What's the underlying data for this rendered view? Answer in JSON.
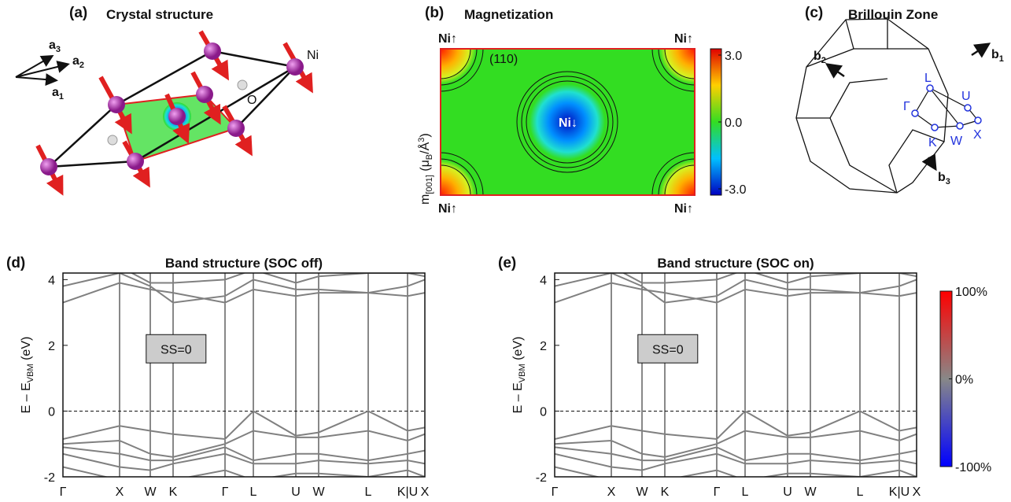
{
  "panel_a": {
    "label": "(a)",
    "title": "Crystal structure",
    "vectors": [
      {
        "name": "a",
        "sub": "3"
      },
      {
        "name": "a",
        "sub": "2"
      },
      {
        "name": "a",
        "sub": "1"
      }
    ],
    "atoms": [
      "Ni",
      "O"
    ]
  },
  "panel_b": {
    "label": "(b)",
    "title": "Magnetization",
    "y_label": [
      "m",
      "[001]",
      " (μ",
      "B",
      "/Å",
      "3",
      ")"
    ],
    "plane": "(110)",
    "corners": [
      "Ni↑",
      "Ni↑",
      "Ni↑",
      "Ni↑"
    ],
    "center": "Ni↓",
    "colorbar": {
      "lim": [
        -3,
        3
      ],
      "ticks": [
        {
          "value": 3,
          "label": "3.0"
        },
        {
          "value": 0,
          "label": "0.0"
        },
        {
          "value": -3,
          "label": "-3.0"
        }
      ]
    }
  },
  "panel_c": {
    "label": "(c)",
    "title": "Brillouin Zone",
    "vectors": [
      {
        "name": "b",
        "sub": "1"
      },
      {
        "name": "b",
        "sub": "2"
      },
      {
        "name": "b",
        "sub": "3"
      }
    ],
    "points": [
      "L",
      "U",
      "Γ",
      "K",
      "W",
      "X"
    ]
  },
  "band_panels": [
    {
      "label": "(d)",
      "title": "Band structure (SOC off)",
      "y_label": [
        "E – E",
        "VBM",
        " (eV)"
      ],
      "note": "SS=0",
      "ylim": [
        -2,
        4.2
      ],
      "yticks": [
        -2,
        0,
        2,
        4
      ],
      "xlim": [
        0,
        460
      ],
      "kticks": [
        {
          "value": 0,
          "label": "Γ"
        },
        {
          "value": 72,
          "label": "X"
        },
        {
          "value": 111,
          "label": "W"
        },
        {
          "value": 140,
          "label": "K"
        },
        {
          "value": 206,
          "label": "Γ"
        },
        {
          "value": 242,
          "label": "L"
        },
        {
          "value": 296,
          "label": "U"
        },
        {
          "value": 325,
          "label": "W"
        },
        {
          "value": 388,
          "label": "L"
        },
        {
          "value": 438,
          "label": "K|U"
        },
        {
          "value": 460,
          "label": "X"
        }
      ],
      "k": [
        0,
        72,
        111,
        140,
        206,
        242,
        296,
        325,
        388,
        438,
        460
      ],
      "bands": [
        [
          -0.85,
          -0.45,
          -0.6,
          -0.7,
          -0.85,
          0,
          -0.75,
          -0.65,
          0,
          -0.6,
          -0.5
        ],
        [
          -1.0,
          -0.9,
          -1.3,
          -1.4,
          -1.0,
          -0.6,
          -0.8,
          -0.8,
          -0.6,
          -0.9,
          -0.7
        ],
        [
          -1.1,
          -1.3,
          -1.5,
          -1.5,
          -1.1,
          -1.5,
          -1.3,
          -1.3,
          -1.5,
          -1.3,
          -1.2
        ],
        [
          -1.3,
          -1.7,
          -1.8,
          -1.6,
          -1.3,
          -1.6,
          -1.6,
          -1.5,
          -1.6,
          -1.5,
          -1.6
        ],
        [
          -1.7,
          -2.1,
          -2.0,
          -2.1,
          -1.8,
          -2.1,
          -1.9,
          -1.9,
          -2.0,
          -1.8,
          -2.0
        ],
        [
          3.3,
          3.9,
          3.7,
          3.6,
          3.3,
          3.7,
          3.5,
          3.6,
          3.6,
          3.8,
          4.0
        ],
        [
          3.8,
          4.2,
          3.8,
          3.3,
          3.5,
          4.0,
          3.7,
          3.7,
          3.6,
          3.5,
          3.6
        ],
        [
          4.3,
          4.4,
          3.9,
          3.9,
          4.0,
          4.3,
          3.9,
          4.1,
          4.2,
          4.2,
          4.1
        ]
      ]
    },
    {
      "label": "(e)",
      "title": "Band structure (SOC on)",
      "y_label": [
        "E – E",
        "VBM",
        " (eV)"
      ],
      "note": "SS=0",
      "ylim": [
        -2,
        4.2
      ],
      "yticks": [
        -2,
        0,
        2,
        4
      ],
      "xlim": [
        0,
        460
      ],
      "kticks": [
        {
          "value": 0,
          "label": "Γ"
        },
        {
          "value": 72,
          "label": "X"
        },
        {
          "value": 111,
          "label": "W"
        },
        {
          "value": 140,
          "label": "K"
        },
        {
          "value": 206,
          "label": "Γ"
        },
        {
          "value": 242,
          "label": "L"
        },
        {
          "value": 296,
          "label": "U"
        },
        {
          "value": 325,
          "label": "W"
        },
        {
          "value": 388,
          "label": "L"
        },
        {
          "value": 438,
          "label": "K|U"
        },
        {
          "value": 460,
          "label": "X"
        }
      ],
      "k": [
        0,
        72,
        111,
        140,
        206,
        242,
        296,
        325,
        388,
        438,
        460
      ],
      "bands": [
        [
          -0.85,
          -0.45,
          -0.6,
          -0.7,
          -0.85,
          0,
          -0.75,
          -0.65,
          0,
          -0.6,
          -0.5
        ],
        [
          -1.0,
          -0.9,
          -1.3,
          -1.4,
          -1.0,
          -0.6,
          -0.8,
          -0.8,
          -0.6,
          -0.9,
          -0.7
        ],
        [
          -1.1,
          -1.3,
          -1.5,
          -1.5,
          -1.1,
          -1.5,
          -1.3,
          -1.3,
          -1.5,
          -1.3,
          -1.2
        ],
        [
          -1.3,
          -1.7,
          -1.8,
          -1.6,
          -1.3,
          -1.6,
          -1.6,
          -1.5,
          -1.6,
          -1.5,
          -1.6
        ],
        [
          -1.7,
          -2.1,
          -2.0,
          -2.1,
          -1.8,
          -2.1,
          -1.9,
          -1.9,
          -2.0,
          -1.8,
          -2.0
        ],
        [
          3.3,
          3.9,
          3.7,
          3.6,
          3.3,
          3.7,
          3.5,
          3.6,
          3.6,
          3.8,
          4.0
        ],
        [
          3.8,
          4.2,
          3.8,
          3.3,
          3.5,
          4.0,
          3.7,
          3.7,
          3.6,
          3.5,
          3.6
        ],
        [
          4.3,
          4.4,
          3.9,
          3.9,
          4.0,
          4.3,
          3.9,
          4.1,
          4.2,
          4.2,
          4.1
        ]
      ]
    }
  ],
  "band_colorbar": {
    "lim": [
      -100,
      100
    ],
    "ticks": [
      {
        "value": 100,
        "label": "100%"
      },
      {
        "value": 0,
        "label": "0%"
      },
      {
        "value": -100,
        "label": "-100%"
      }
    ]
  }
}
